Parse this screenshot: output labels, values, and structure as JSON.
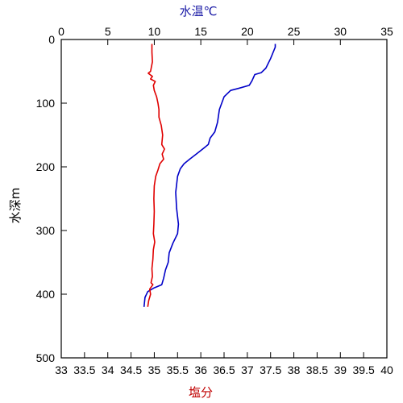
{
  "chart_data": {
    "type": "line",
    "title": "",
    "top_axis": {
      "label": "水温℃",
      "label_color": "#1a1aa6",
      "range": [
        0,
        35
      ],
      "ticks": [
        "0",
        "5",
        "10",
        "15",
        "20",
        "25",
        "30",
        "35"
      ]
    },
    "bottom_axis": {
      "label": "塩分",
      "label_color": "#c00000",
      "range": [
        33,
        40
      ],
      "ticks": [
        "33",
        "33.5",
        "34",
        "34.5",
        "35",
        "35.5",
        "36",
        "36.5",
        "37",
        "37.5",
        "38",
        "38.5",
        "39",
        "39.5",
        "40"
      ]
    },
    "y_axis": {
      "label": "水深m",
      "range": [
        0,
        500
      ],
      "inverted": true,
      "ticks": [
        "0",
        "100",
        "200",
        "300",
        "400",
        "500"
      ]
    },
    "series": [
      {
        "variable": "water-temperature",
        "axis": "top",
        "color": "#0000c8",
        "points": [
          [
            23.0,
            7
          ],
          [
            23.0,
            12
          ],
          [
            22.5,
            30
          ],
          [
            22.0,
            45
          ],
          [
            21.5,
            52
          ],
          [
            20.8,
            55
          ],
          [
            20.5,
            65
          ],
          [
            20.2,
            72
          ],
          [
            19.0,
            77
          ],
          [
            18.2,
            80
          ],
          [
            17.5,
            90
          ],
          [
            17.0,
            110
          ],
          [
            16.8,
            130
          ],
          [
            16.5,
            145
          ],
          [
            16.0,
            155
          ],
          [
            15.8,
            165
          ],
          [
            15.2,
            172
          ],
          [
            14.5,
            180
          ],
          [
            13.8,
            188
          ],
          [
            13.2,
            195
          ],
          [
            12.8,
            203
          ],
          [
            12.5,
            215
          ],
          [
            12.3,
            240
          ],
          [
            12.4,
            265
          ],
          [
            12.6,
            290
          ],
          [
            12.5,
            305
          ],
          [
            12.0,
            320
          ],
          [
            11.6,
            335
          ],
          [
            11.5,
            350
          ],
          [
            11.2,
            362
          ],
          [
            11.0,
            375
          ],
          [
            10.8,
            385
          ],
          [
            10.0,
            390
          ],
          [
            9.3,
            396
          ],
          [
            9.0,
            405
          ],
          [
            8.9,
            420
          ]
        ]
      },
      {
        "variable": "salinity",
        "axis": "bottom",
        "color": "#e00000",
        "points": [
          [
            34.95,
            7
          ],
          [
            34.95,
            20
          ],
          [
            34.96,
            35
          ],
          [
            34.92,
            50
          ],
          [
            34.87,
            53
          ],
          [
            34.96,
            58
          ],
          [
            34.92,
            62
          ],
          [
            35.02,
            66
          ],
          [
            34.98,
            72
          ],
          [
            35.0,
            80
          ],
          [
            35.05,
            90
          ],
          [
            35.08,
            100
          ],
          [
            35.1,
            110
          ],
          [
            35.1,
            122
          ],
          [
            35.15,
            135
          ],
          [
            35.18,
            150
          ],
          [
            35.16,
            165
          ],
          [
            35.22,
            172
          ],
          [
            35.17,
            180
          ],
          [
            35.2,
            188
          ],
          [
            35.12,
            195
          ],
          [
            35.08,
            205
          ],
          [
            35.03,
            215
          ],
          [
            35.0,
            230
          ],
          [
            34.99,
            250
          ],
          [
            35.0,
            270
          ],
          [
            34.99,
            290
          ],
          [
            34.98,
            305
          ],
          [
            35.01,
            318
          ],
          [
            34.98,
            330
          ],
          [
            34.97,
            345
          ],
          [
            34.95,
            360
          ],
          [
            34.96,
            372
          ],
          [
            34.93,
            382
          ],
          [
            34.97,
            385
          ],
          [
            34.9,
            392
          ],
          [
            34.92,
            400
          ],
          [
            34.88,
            410
          ],
          [
            34.86,
            420
          ]
        ]
      }
    ]
  }
}
